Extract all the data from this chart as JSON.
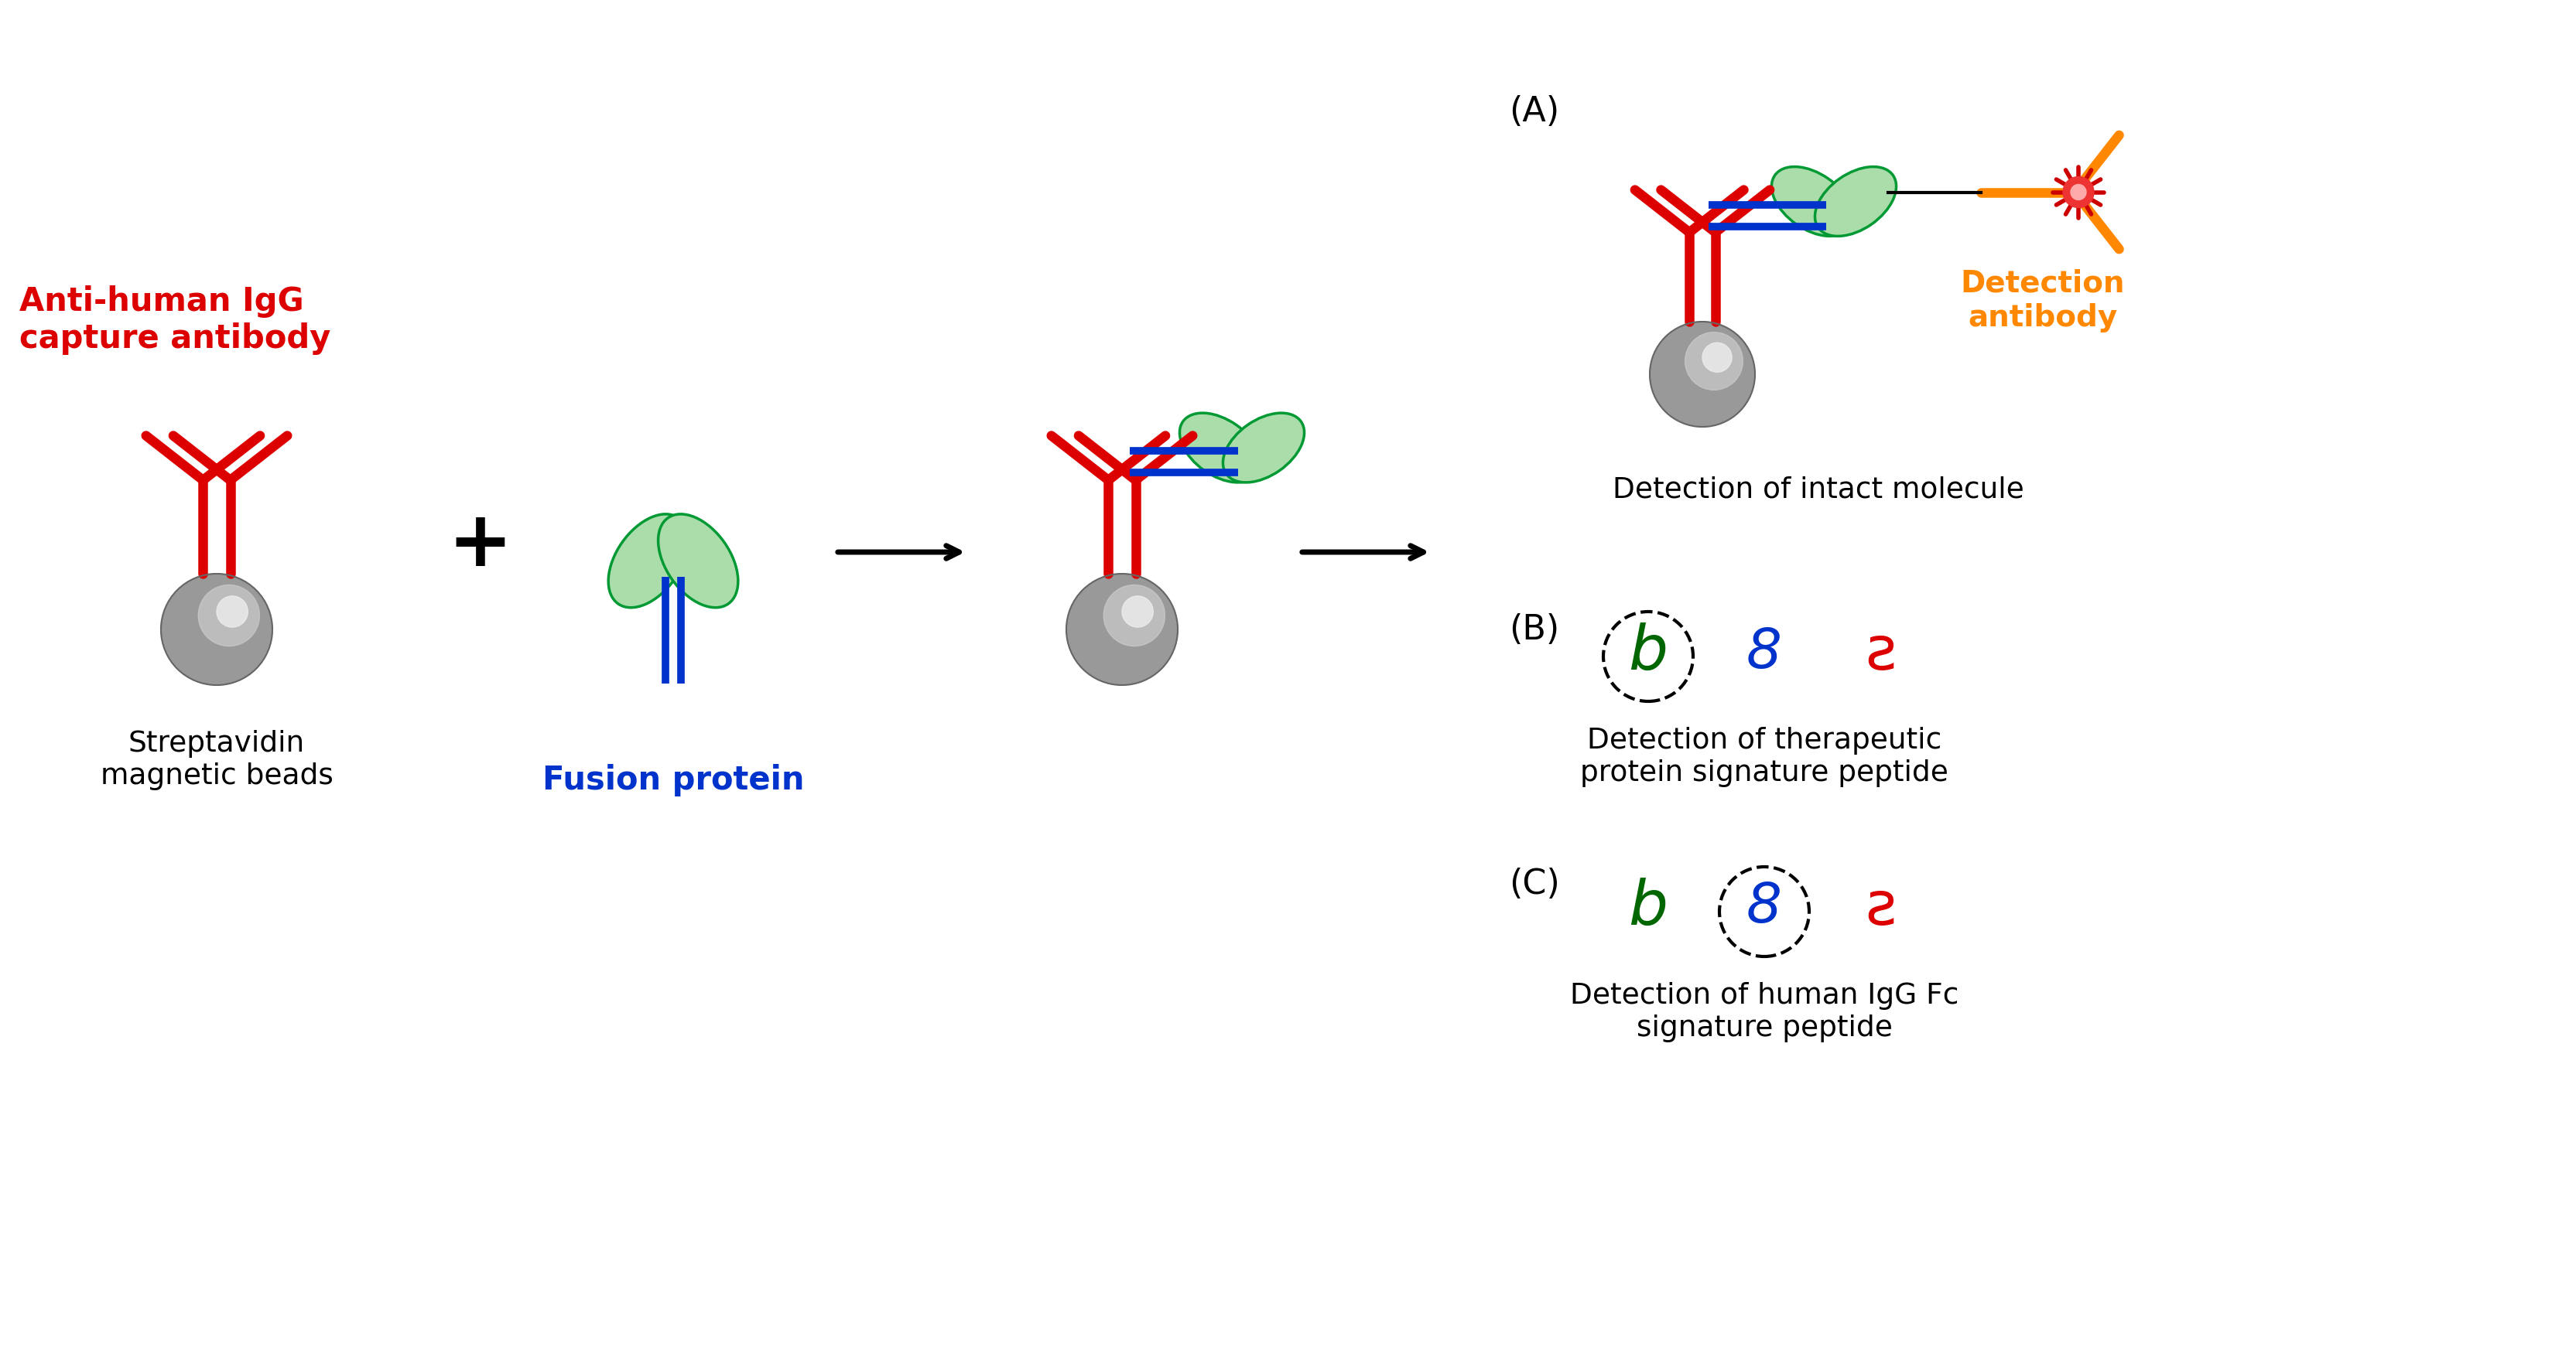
{
  "bg_color": "#ffffff",
  "red": "#dd0000",
  "blue": "#0033cc",
  "green": "#009933",
  "green_fill": "#aaddaa",
  "orange": "#ff8800",
  "gray_dark": "#888888",
  "gray_mid": "#bbbbbb",
  "gray_light": "#dddddd",
  "black": "#000000",
  "dark_green": "#006600",
  "label_anti_human": "Anti-human IgG\ncapture antibody",
  "label_streptavidin": "Streptavidin\nmagnetic beads",
  "label_fusion": "Fusion protein",
  "label_detection": "Detection\nantibody",
  "label_A": "(A)",
  "label_A_text": "Detection of intact molecule",
  "label_B": "(B)",
  "label_B_text": "Detection of therapeutic\nprotein signature peptide",
  "label_C": "(C)",
  "label_C_text": "Detection of human IgG Fc\nsignature peptide"
}
